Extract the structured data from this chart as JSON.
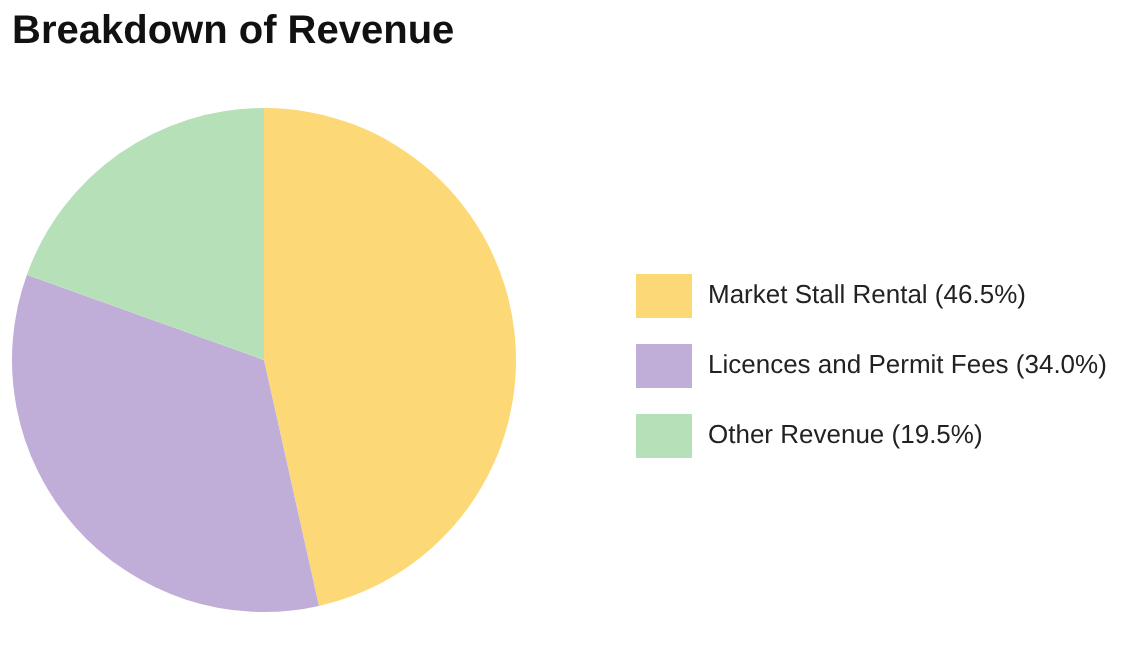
{
  "chart_data": {
    "type": "pie",
    "title": "Breakdown of Revenue",
    "categories": [
      "Market Stall Rental (46.5%)",
      "Licences and Permit Fees (34.0%)",
      "Other Revenue (19.5%)"
    ],
    "values": [
      46.5,
      34.0,
      19.5
    ],
    "colors": [
      "#fdd876",
      "#c0aed9",
      "#b5e0b8"
    ],
    "legend": "right"
  }
}
